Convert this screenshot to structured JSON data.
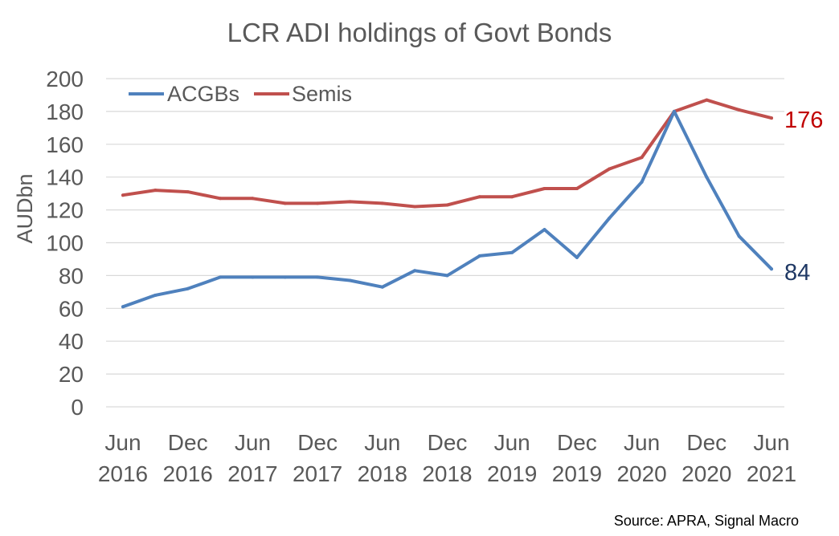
{
  "chart_data": {
    "type": "line",
    "title": "LCR ADI holdings of Govt Bonds",
    "ylabel": "AUDbn",
    "xlabel": "",
    "ylim": [
      0,
      200
    ],
    "yticks": [
      0,
      20,
      40,
      60,
      80,
      100,
      120,
      140,
      160,
      180,
      200
    ],
    "grid": true,
    "legend_position": "top-left",
    "x_tick_labels": [
      {
        "month": "Jun",
        "year": "2016"
      },
      {
        "month": "Dec",
        "year": "2016"
      },
      {
        "month": "Jun",
        "year": "2017"
      },
      {
        "month": "Dec",
        "year": "2017"
      },
      {
        "month": "Jun",
        "year": "2018"
      },
      {
        "month": "Dec",
        "year": "2018"
      },
      {
        "month": "Jun",
        "year": "2019"
      },
      {
        "month": "Dec",
        "year": "2019"
      },
      {
        "month": "Jun",
        "year": "2020"
      },
      {
        "month": "Dec",
        "year": "2020"
      },
      {
        "month": "Jun",
        "year": "2021"
      }
    ],
    "x": [
      "Jun 2016",
      "Sep 2016",
      "Dec 2016",
      "Mar 2017",
      "Jun 2017",
      "Sep 2017",
      "Dec 2017",
      "Mar 2018",
      "Jun 2018",
      "Sep 2018",
      "Dec 2018",
      "Mar 2019",
      "Jun 2019",
      "Sep 2019",
      "Dec 2019",
      "Mar 2020",
      "Jun 2020",
      "Sep 2020",
      "Dec 2020",
      "Mar 2021",
      "Jun 2021"
    ],
    "series": [
      {
        "name": "ACGBs",
        "color": "#4f81bd",
        "values": [
          61,
          68,
          72,
          79,
          79,
          79,
          79,
          77,
          73,
          83,
          80,
          92,
          94,
          108,
          91,
          115,
          137,
          180,
          140,
          104,
          84
        ],
        "end_label": "84",
        "end_label_color": "#1f3864"
      },
      {
        "name": "Semis",
        "color": "#c0504d",
        "values": [
          129,
          132,
          131,
          127,
          127,
          124,
          124,
          125,
          124,
          122,
          123,
          128,
          128,
          133,
          133,
          145,
          152,
          180,
          187,
          181,
          176
        ],
        "end_label": "176",
        "end_label_color": "#c00000"
      }
    ],
    "source": "Source: APRA, Signal Macro"
  }
}
